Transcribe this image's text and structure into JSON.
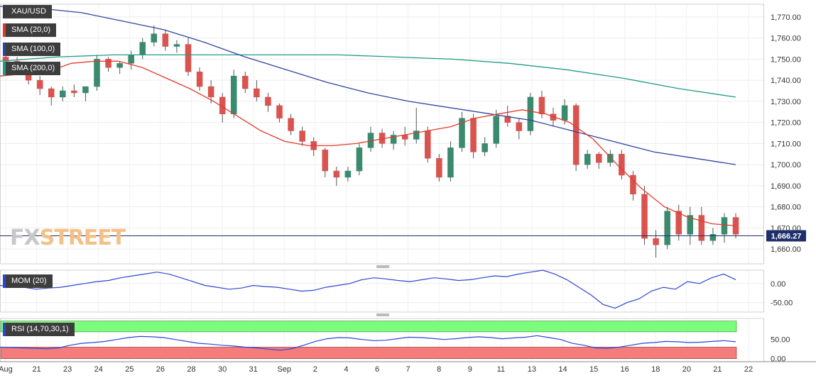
{
  "watermark": {
    "part1": "FX",
    "part2": "STREET"
  },
  "price_panel": {
    "labels": [
      {
        "text": "XAU/USD",
        "color": "#3d3d3d"
      },
      {
        "text": "SMA (20,0)",
        "color": "#e03b2e"
      },
      {
        "text": "SMA (100,0)",
        "color": "#2d46a3"
      },
      {
        "text": "SMA (200,0)",
        "color": "#1f9c85"
      }
    ],
    "last_price_label": "1,666.27"
  },
  "mom_panel": {
    "label": "MOM (20)",
    "line_color": "#2d46d4"
  },
  "rsi_panel": {
    "label": "RSI (14,70,30,1)",
    "line_color": "#2d46d4",
    "overbought_color": "#7cfc7c",
    "oversold_color": "#f47c7c"
  },
  "chart_data": {
    "type": "candlestick",
    "x_labels": [
      "Aug",
      "21",
      "23",
      "24",
      "25",
      "26",
      "28",
      "30",
      "31",
      "Sep",
      "2",
      "4",
      "6",
      "7",
      "8",
      "9",
      "11",
      "13",
      "14",
      "15",
      "16",
      "18",
      "20",
      "21",
      "22"
    ],
    "price_axis": {
      "ylim": [
        1653,
        1776
      ],
      "ticks": [
        "1,660.00",
        "1,670.00",
        "1,680.00",
        "1,690.00",
        "1,700.00",
        "1,710.00",
        "1,720.00",
        "1,730.00",
        "1,740.00",
        "1,750.00",
        "1,760.00",
        "1,770.00"
      ],
      "tick_values": [
        1660,
        1670,
        1680,
        1690,
        1700,
        1710,
        1720,
        1730,
        1740,
        1750,
        1760,
        1770
      ]
    },
    "last_price": 1666.27,
    "candles_ohlc": [
      [
        1751,
        1753,
        1748,
        1749
      ],
      [
        1749,
        1751,
        1744,
        1746
      ],
      [
        1746,
        1748,
        1738,
        1740
      ],
      [
        1740,
        1742,
        1733,
        1736
      ],
      [
        1736,
        1737,
        1728,
        1732
      ],
      [
        1732,
        1737,
        1730,
        1735
      ],
      [
        1735,
        1738,
        1732,
        1734
      ],
      [
        1734,
        1736,
        1730,
        1737
      ],
      [
        1737,
        1752,
        1735,
        1750
      ],
      [
        1750,
        1751,
        1744,
        1746
      ],
      [
        1746,
        1749,
        1743,
        1748
      ],
      [
        1748,
        1754,
        1745,
        1752
      ],
      [
        1752,
        1760,
        1750,
        1758
      ],
      [
        1758,
        1766,
        1756,
        1762
      ],
      [
        1762,
        1764,
        1754,
        1756
      ],
      [
        1756,
        1759,
        1753,
        1757
      ],
      [
        1757,
        1760,
        1742,
        1744
      ],
      [
        1744,
        1746,
        1735,
        1737
      ],
      [
        1737,
        1740,
        1729,
        1732
      ],
      [
        1732,
        1734,
        1720,
        1724
      ],
      [
        1724,
        1745,
        1722,
        1742
      ],
      [
        1742,
        1744,
        1734,
        1736
      ],
      [
        1736,
        1740,
        1730,
        1732
      ],
      [
        1732,
        1734,
        1725,
        1728
      ],
      [
        1728,
        1729,
        1720,
        1722
      ],
      [
        1722,
        1724,
        1714,
        1716
      ],
      [
        1716,
        1718,
        1709,
        1711
      ],
      [
        1711,
        1713,
        1704,
        1707
      ],
      [
        1707,
        1708,
        1694,
        1697
      ],
      [
        1697,
        1699,
        1690,
        1694
      ],
      [
        1694,
        1699,
        1692,
        1697
      ],
      [
        1697,
        1710,
        1695,
        1708
      ],
      [
        1708,
        1718,
        1706,
        1715
      ],
      [
        1715,
        1717,
        1708,
        1710
      ],
      [
        1710,
        1716,
        1707,
        1714
      ],
      [
        1714,
        1718,
        1709,
        1712
      ],
      [
        1712,
        1727,
        1710,
        1716
      ],
      [
        1716,
        1718,
        1701,
        1703
      ],
      [
        1703,
        1705,
        1692,
        1694
      ],
      [
        1694,
        1711,
        1692,
        1708
      ],
      [
        1708,
        1725,
        1706,
        1722
      ],
      [
        1722,
        1724,
        1703,
        1706
      ],
      [
        1706,
        1713,
        1704,
        1710
      ],
      [
        1710,
        1726,
        1708,
        1723
      ],
      [
        1723,
        1728,
        1718,
        1720
      ],
      [
        1720,
        1722,
        1712,
        1716
      ],
      [
        1716,
        1734,
        1714,
        1732
      ],
      [
        1732,
        1735,
        1722,
        1724
      ],
      [
        1724,
        1727,
        1718,
        1721
      ],
      [
        1721,
        1731,
        1719,
        1728
      ],
      [
        1728,
        1729,
        1697,
        1700
      ],
      [
        1700,
        1707,
        1698,
        1705
      ],
      [
        1705,
        1706,
        1698,
        1701
      ],
      [
        1701,
        1707,
        1699,
        1705
      ],
      [
        1705,
        1707,
        1693,
        1695
      ],
      [
        1695,
        1697,
        1683,
        1686
      ],
      [
        1686,
        1690,
        1662,
        1665
      ],
      [
        1665,
        1669,
        1656,
        1662
      ],
      [
        1662,
        1680,
        1660,
        1678
      ],
      [
        1678,
        1681,
        1664,
        1667
      ],
      [
        1667,
        1680,
        1662,
        1676
      ],
      [
        1676,
        1680,
        1662,
        1664
      ],
      [
        1664,
        1670,
        1662,
        1667
      ],
      [
        1667,
        1677,
        1663,
        1675
      ],
      [
        1675,
        1677,
        1665,
        1667
      ]
    ],
    "sma20": [
      1742,
      1743,
      1744,
      1748,
      1749,
      1749,
      1746,
      1741,
      1736,
      1730,
      1723,
      1716,
      1711,
      1709,
      1709,
      1710,
      1712,
      1714,
      1716,
      1718,
      1722,
      1724,
      1726,
      1724,
      1720,
      1712,
      1700,
      1689,
      1680,
      1675,
      1672,
      1671
    ],
    "sma100": [
      1775,
      1774,
      1772,
      1768,
      1764,
      1758,
      1751,
      1745,
      1739,
      1734,
      1730,
      1727,
      1724,
      1721,
      1716,
      1711,
      1706,
      1703,
      1700
    ],
    "sma200": [
      1749,
      1751,
      1752,
      1752,
      1752,
      1752,
      1752,
      1751,
      1750,
      1748,
      1745,
      1741,
      1736,
      1732
    ],
    "mom_axis": {
      "ylim": [
        -75,
        35
      ],
      "ticks": [
        "0.00",
        "-50.00"
      ],
      "tick_values": [
        0,
        -50
      ]
    },
    "mom_values": [
      -5,
      -8,
      -10,
      -15,
      -12,
      -10,
      -5,
      0,
      5,
      8,
      15,
      20,
      25,
      30,
      25,
      15,
      5,
      -5,
      -10,
      -15,
      -12,
      -5,
      -8,
      -10,
      -15,
      -20,
      -18,
      -10,
      -5,
      0,
      10,
      15,
      12,
      8,
      5,
      10,
      15,
      12,
      8,
      10,
      15,
      20,
      18,
      25,
      30,
      35,
      25,
      10,
      -10,
      -30,
      -55,
      -65,
      -50,
      -40,
      -20,
      -10,
      -15,
      5,
      0,
      15,
      25,
      10
    ]
  },
  "rsi_axis": {
    "ylim": [
      -8,
      105
    ],
    "ticks": [
      "50.00",
      "0.00"
    ],
    "tick_values": [
      50,
      0
    ],
    "overbought": 70,
    "oversold": 30
  },
  "rsi_values": [
    30,
    29,
    28,
    27,
    26,
    28,
    35,
    40,
    42,
    45,
    50,
    55,
    58,
    57,
    55,
    50,
    45,
    40,
    38,
    35,
    33,
    30,
    28,
    25,
    22,
    26,
    35,
    45,
    52,
    55,
    54,
    50,
    47,
    48,
    52,
    56,
    55,
    53,
    50,
    52,
    55,
    57,
    55,
    52,
    54,
    56,
    60,
    55,
    50,
    40,
    35,
    28,
    27,
    30,
    35,
    40,
    42,
    45,
    44,
    42,
    43,
    45,
    47,
    44
  ]
}
